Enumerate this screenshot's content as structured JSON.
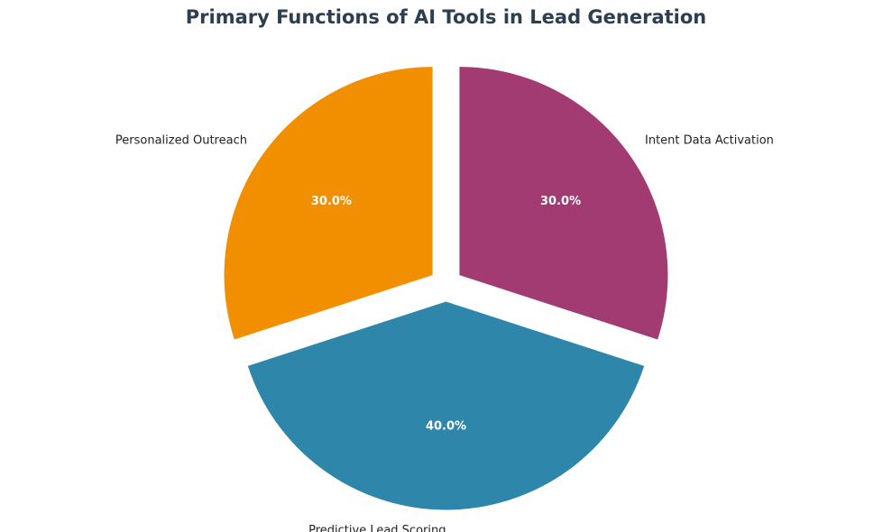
{
  "chart_data": {
    "type": "pie",
    "title": "Primary Functions of AI Tools in Lead Generation",
    "slices": [
      {
        "label": "Personalized Outreach",
        "value": 30.0,
        "pct_label": "30.0%",
        "color": "#f18f01"
      },
      {
        "label": "Predictive Lead Scoring",
        "value": 40.0,
        "pct_label": "40.0%",
        "color": "#2e86ab"
      },
      {
        "label": "Intent Data Activation",
        "value": 30.0,
        "pct_label": "30.0%",
        "color": "#a23b72"
      }
    ],
    "start_angle": 90,
    "direction": "counterclockwise",
    "exploded": true,
    "legend": "none"
  }
}
